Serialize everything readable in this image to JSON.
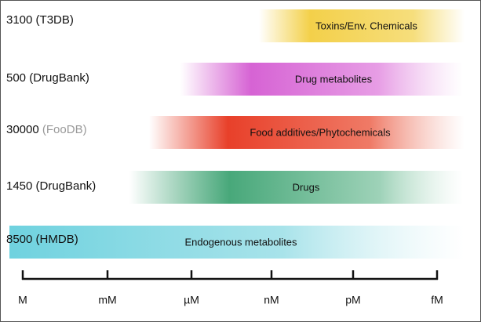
{
  "rows": [
    {
      "count": "3100",
      "source": "(T3DB)",
      "band": "Toxins/Env. Chemicals"
    },
    {
      "count": "500",
      "source": "(DrugBank)",
      "band": "Drug metabolites"
    },
    {
      "count": "30000",
      "source": "(FooDB)",
      "band": "Food additives/Phytochemicals"
    },
    {
      "count": "1450",
      "source": "(DrugBank)",
      "band": "Drugs"
    },
    {
      "count": "8500",
      "source": "(HMDB)",
      "band": "Endogenous metabolites"
    }
  ],
  "axis": [
    "M",
    "mM",
    "µM",
    "nM",
    "pM",
    "fM"
  ]
}
